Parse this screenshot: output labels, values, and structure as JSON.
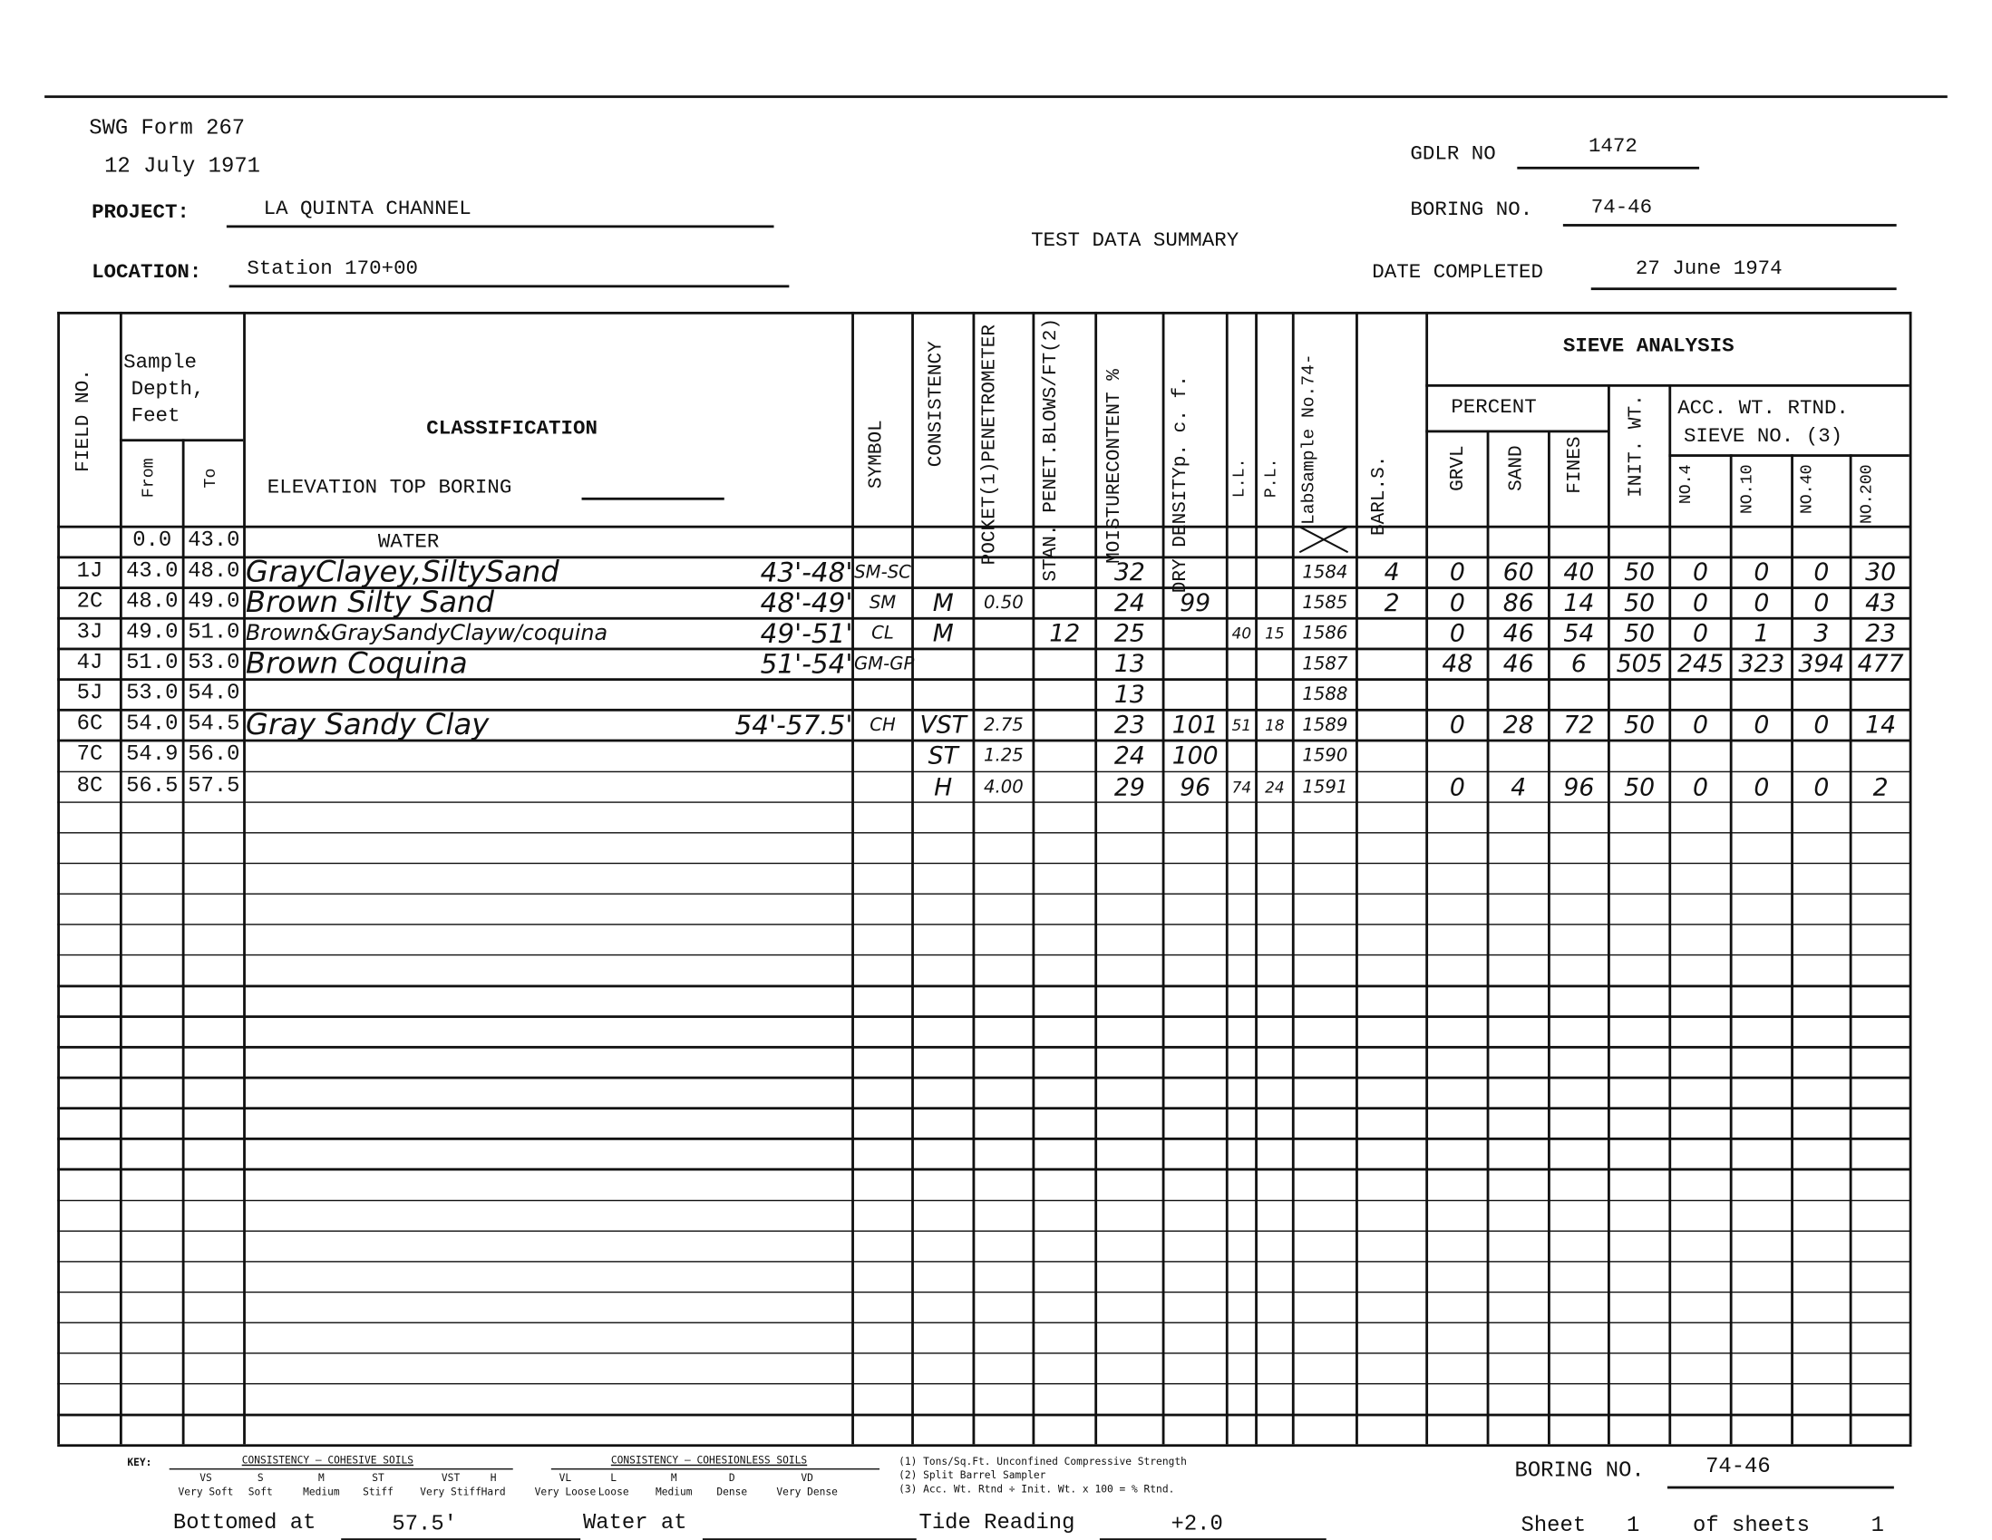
{
  "form": {
    "number": "SWG Form 267",
    "date": "12 July 1971"
  },
  "title": "TEST DATA SUMMARY",
  "project": {
    "label": "PROJECT:",
    "value": "LA QUINTA CHANNEL"
  },
  "location": {
    "label": "LOCATION:",
    "value": "Station 170+00"
  },
  "gdlr": {
    "label": "GDLR NO",
    "value": "1472"
  },
  "boring": {
    "label": "BORING NO.",
    "value": "74-46"
  },
  "date_completed": {
    "label": "DATE COMPLETED",
    "value": "27 June 1974"
  },
  "headers": {
    "field_no": "FIELD NO.",
    "sample_depth": [
      "Sample",
      "Depth,",
      "Feet"
    ],
    "from": "From",
    "to": "To",
    "classification": "CLASSIFICATION",
    "elevation": "ELEVATION TOP BORING",
    "symbol": "SYMBOL",
    "consistency": "CONSISTENCY",
    "pocket": [
      "POCKET(1)",
      "PENETROMETER"
    ],
    "stan": [
      "STAN. PENET.",
      "BLOWS/FT(2)"
    ],
    "moisture": [
      "MOISTURE",
      "CONTENT %"
    ],
    "dry_density": [
      "DRY DENSITY",
      "p. c. f."
    ],
    "ll": "L.L.",
    "pl": "P.L.",
    "lab": [
      "Lab",
      "Sample No.",
      "74-"
    ],
    "bar": [
      "BAR",
      "L.S."
    ],
    "sieve": "SIEVE ANALYSIS",
    "percent": "PERCENT",
    "grvl": "GRVL",
    "sand": "SAND",
    "fines": "FINES",
    "init_wt": "INIT. WT.",
    "acc": [
      "ACC. WT. RTND.",
      "SIEVE NO. (3)"
    ],
    "no4": [
      "NO.",
      "4"
    ],
    "no10": [
      "NO.",
      "10"
    ],
    "no40": [
      "NO.",
      "40"
    ],
    "no200": [
      "NO.",
      "200"
    ]
  },
  "rows": [
    [
      "",
      "0.0",
      "43.0",
      "WATER",
      "",
      "",
      "",
      "",
      "",
      "",
      "",
      "",
      "",
      "",
      "",
      "",
      "",
      "",
      "",
      "",
      "",
      "",
      ""
    ],
    [
      "1J",
      "43.0",
      "48.0",
      "GrayClayey,SiltySand",
      "43'-48'",
      "SM-SC",
      "",
      "",
      "",
      "32",
      "",
      "",
      "",
      "1584",
      "4",
      "0",
      "60",
      "40",
      "50",
      "0",
      "0",
      "0",
      "30"
    ],
    [
      "2C",
      "48.0",
      "49.0",
      "Brown Silty Sand",
      "48'-49'",
      "SM",
      "M",
      "0.50",
      "",
      "24",
      "99",
      "",
      "",
      "1585",
      "2",
      "0",
      "86",
      "14",
      "50",
      "0",
      "0",
      "0",
      "43"
    ],
    [
      "3J",
      "49.0",
      "51.0",
      "Brown&GraySandyClayw/coquina",
      "49'-51'",
      "CL",
      "M",
      "",
      "12",
      "25",
      "",
      "40",
      "15",
      "1586",
      "",
      "0",
      "46",
      "54",
      "50",
      "0",
      "1",
      "3",
      "23"
    ],
    [
      "4J",
      "51.0",
      "53.0",
      "Brown Coquina",
      "51'-54'",
      "GM-GP",
      "",
      "",
      "",
      "13",
      "",
      "",
      "",
      "1587",
      "",
      "48",
      "46",
      "6",
      "505",
      "245",
      "323",
      "394",
      "477"
    ],
    [
      "5J",
      "53.0",
      "54.0",
      "",
      "",
      "",
      "",
      "",
      "",
      "13",
      "",
      "",
      "",
      "1588",
      "",
      "",
      "",
      "",
      "",
      "",
      "",
      "",
      ""
    ],
    [
      "6C",
      "54.0",
      "54.5",
      "Gray Sandy Clay",
      "54'-57.5'",
      "CH",
      "VST",
      "2.75",
      "",
      "23",
      "101",
      "51",
      "18",
      "1589",
      "",
      "0",
      "28",
      "72",
      "50",
      "0",
      "0",
      "0",
      "14"
    ],
    [
      "7C",
      "54.9",
      "56.0",
      "",
      "",
      "",
      "ST",
      "1.25",
      "",
      "24",
      "100",
      "",
      "",
      "1590",
      "",
      "",
      "",
      "",
      "",
      "",
      "",
      "",
      ""
    ],
    [
      "8C",
      "56.5",
      "57.5",
      "",
      "",
      "",
      "H",
      "4.00",
      "",
      "29",
      "96",
      "74",
      "24",
      "1591",
      "",
      "0",
      "4",
      "96",
      "50",
      "0",
      "0",
      "0",
      "2"
    ]
  ],
  "key": {
    "label": "KEY:",
    "cohesive_title": "CONSISTENCY — COHESIVE SOILS",
    "cohesive": [
      [
        "VS",
        "Very Soft"
      ],
      [
        "S",
        "Soft"
      ],
      [
        "M",
        "Medium"
      ],
      [
        "ST",
        "Stiff"
      ],
      [
        "VST",
        "Very Stiff"
      ],
      [
        "H",
        "Hard"
      ]
    ],
    "cohesionless_title": "CONSISTENCY — COHESIONLESS SOILS",
    "cohesionless": [
      [
        "VL",
        "Very Loose"
      ],
      [
        "L",
        "Loose"
      ],
      [
        "M",
        "Medium"
      ],
      [
        "D",
        "Dense"
      ],
      [
        "VD",
        "Very Dense"
      ]
    ],
    "notes": [
      "(1) Tons/Sq.Ft. Unconfined Compressive Strength",
      "(2) Split Barrel Sampler",
      "(3) Acc. Wt. Rtnd ÷ Init. Wt. x 100 = % Rtnd."
    ]
  },
  "footer": {
    "bottomed_label": "Bottomed at",
    "bottomed_value": "57.5'",
    "water_label": "Water at",
    "water_value": "",
    "tide_label": "Tide Reading",
    "tide_value": "+2.0",
    "boring_label": "BORING NO.",
    "boring_value": "74-46",
    "sheet_label": "Sheet",
    "sheet_value": "1",
    "of_label": "of sheets",
    "of_value": "1"
  }
}
